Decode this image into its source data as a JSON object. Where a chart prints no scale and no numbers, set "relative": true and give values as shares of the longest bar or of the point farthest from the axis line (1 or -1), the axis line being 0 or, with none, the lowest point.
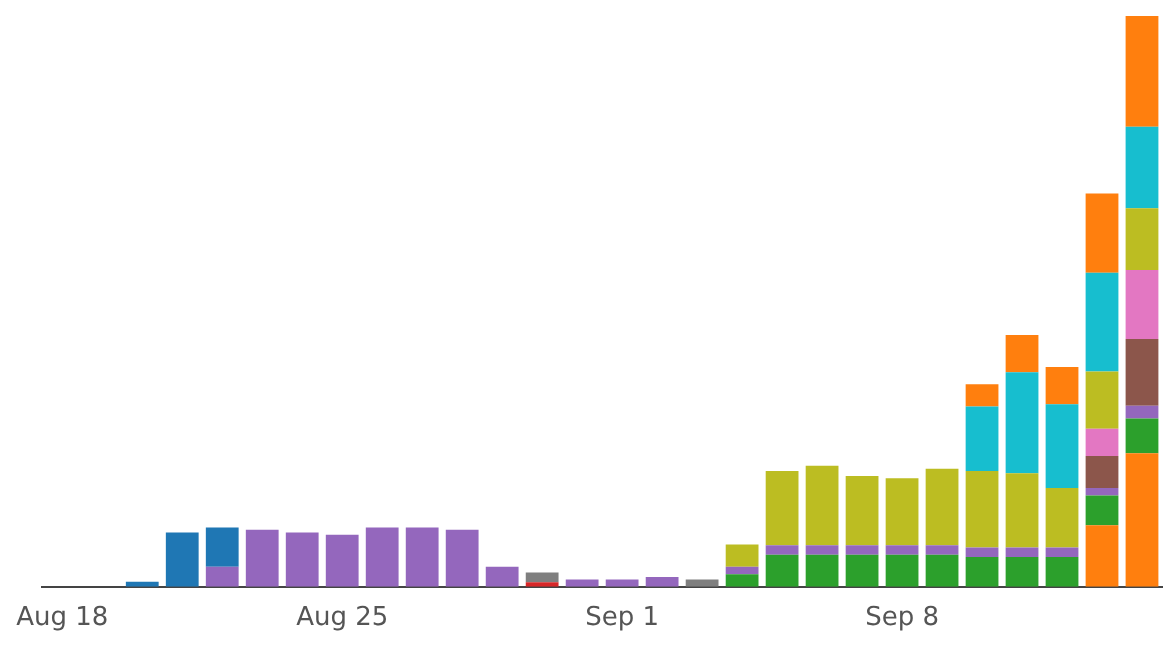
{
  "chart_data": {
    "type": "bar",
    "stacked": true,
    "relative": true,
    "grid": false,
    "legend": false,
    "categories": [
      "Aug 18",
      null,
      null,
      null,
      null,
      null,
      null,
      "Aug 25",
      null,
      null,
      null,
      null,
      null,
      null,
      "Sep 1",
      null,
      null,
      null,
      null,
      null,
      null,
      "Sep 8",
      null,
      null,
      null,
      null,
      null,
      null
    ],
    "series": [
      {
        "color": "#ff7f0e",
        "values": [
          null,
          null,
          null,
          null,
          null,
          null,
          null,
          null,
          null,
          null,
          null,
          null,
          null,
          null,
          null,
          null,
          null,
          null,
          null,
          null,
          null,
          null,
          null,
          null,
          null,
          null,
          0.108,
          0.234
        ]
      },
      {
        "color": "#2ca02c",
        "values": [
          null,
          null,
          null,
          null,
          null,
          null,
          null,
          null,
          null,
          null,
          null,
          null,
          null,
          null,
          null,
          null,
          null,
          0.022,
          0.056,
          0.056,
          0.056,
          0.056,
          0.056,
          0.052,
          0.052,
          0.052,
          0.052,
          0.061
        ]
      },
      {
        "color": "#d62728",
        "values": [
          null,
          null,
          null,
          null,
          null,
          null,
          null,
          null,
          null,
          null,
          null,
          null,
          0.008,
          null,
          null,
          null,
          null,
          null,
          null,
          null,
          null,
          null,
          null,
          null,
          null,
          null,
          null,
          null
        ]
      },
      {
        "color": "#9467bd",
        "values": [
          null,
          null,
          null,
          null,
          0.035,
          0.1,
          0.095,
          0.091,
          0.104,
          0.104,
          0.1,
          0.035,
          null,
          0.013,
          0.013,
          0.017,
          null,
          0.013,
          0.017,
          0.017,
          0.017,
          0.017,
          0.017,
          0.017,
          0.017,
          0.017,
          0.013,
          0.022
        ]
      },
      {
        "color": "#1f77b4",
        "values": [
          null,
          null,
          0.009,
          0.095,
          0.069,
          null,
          null,
          null,
          null,
          null,
          null,
          null,
          null,
          null,
          null,
          null,
          null,
          null,
          null,
          null,
          null,
          null,
          null,
          null,
          null,
          null,
          null,
          null
        ]
      },
      {
        "color": "#7f7f7f",
        "values": [
          null,
          null,
          null,
          null,
          null,
          null,
          null,
          null,
          null,
          null,
          null,
          null,
          0.017,
          null,
          null,
          null,
          0.013,
          null,
          null,
          null,
          null,
          null,
          null,
          null,
          null,
          null,
          null,
          null
        ]
      },
      {
        "color": "#8c564b",
        "values": [
          null,
          null,
          null,
          null,
          null,
          null,
          null,
          null,
          null,
          null,
          null,
          null,
          null,
          null,
          null,
          null,
          null,
          null,
          null,
          null,
          null,
          null,
          null,
          null,
          null,
          null,
          0.056,
          0.117
        ]
      },
      {
        "color": "#e377c2",
        "values": [
          null,
          null,
          null,
          null,
          null,
          null,
          null,
          null,
          null,
          null,
          null,
          null,
          null,
          null,
          null,
          null,
          null,
          null,
          null,
          null,
          null,
          null,
          null,
          null,
          null,
          null,
          0.048,
          0.121
        ]
      },
      {
        "color": "#bcbd22",
        "values": [
          null,
          null,
          null,
          null,
          null,
          null,
          null,
          null,
          null,
          null,
          null,
          null,
          null,
          null,
          null,
          null,
          null,
          0.039,
          0.13,
          0.139,
          0.121,
          0.117,
          0.134,
          0.134,
          0.13,
          0.104,
          0.1,
          0.108
        ]
      },
      {
        "color": "#17becf",
        "values": [
          null,
          null,
          null,
          null,
          null,
          null,
          null,
          null,
          null,
          null,
          null,
          null,
          null,
          null,
          null,
          null,
          null,
          null,
          null,
          null,
          null,
          null,
          null,
          0.113,
          0.177,
          0.147,
          0.173,
          0.143
        ]
      },
      {
        "color": "#ff7f0e",
        "values": [
          null,
          null,
          null,
          null,
          null,
          null,
          null,
          null,
          null,
          null,
          null,
          null,
          null,
          null,
          null,
          null,
          null,
          null,
          null,
          null,
          null,
          null,
          null,
          0.039,
          0.065,
          0.065,
          0.139,
          0.194
        ]
      }
    ]
  }
}
